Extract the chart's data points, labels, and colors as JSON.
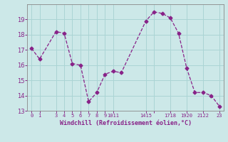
{
  "x": [
    0,
    1,
    3,
    4,
    5,
    6,
    7,
    8,
    9,
    10,
    11,
    14,
    15,
    16,
    17,
    18,
    19,
    20,
    21,
    22,
    23
  ],
  "y": [
    17.1,
    16.4,
    18.2,
    18.1,
    16.1,
    16.0,
    13.6,
    14.2,
    15.4,
    15.6,
    15.5,
    18.9,
    19.5,
    19.4,
    19.1,
    18.1,
    15.8,
    14.2,
    14.2,
    14.0,
    13.3
  ],
  "line_color": "#882288",
  "marker": "D",
  "marker_size": 2.5,
  "bg_color": "#cce8e8",
  "grid_color": "#aad4d4",
  "xlabel": "Windchill (Refroidissement éolien,°C)",
  "ylim_min": 13,
  "ylim_max": 20,
  "xlim_min": -0.5,
  "xlim_max": 23.5,
  "yticks": [
    13,
    14,
    15,
    16,
    17,
    18,
    19
  ],
  "xtick_pos": [
    0,
    1,
    3,
    4,
    5,
    6,
    7,
    8,
    9,
    10,
    14,
    15,
    17,
    19,
    21,
    23
  ],
  "xtick_labels": [
    "0",
    "1",
    "3",
    "4",
    "5",
    "6",
    "7",
    "8",
    "9",
    "1011",
    "1415",
    "",
    "1718",
    "1920",
    "2122",
    "23"
  ]
}
